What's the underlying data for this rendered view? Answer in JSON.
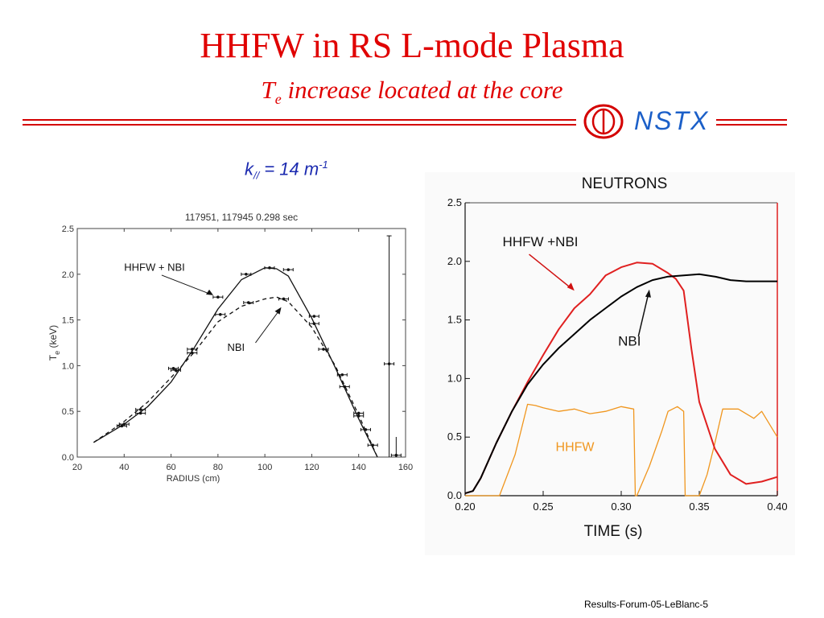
{
  "slide": {
    "title": "HHFW in RS L-mode Plasma",
    "subtitle_main": "T",
    "subtitle_sub": "e",
    "subtitle_rest": " increase located at the core",
    "logo_text": "NSTX",
    "kpar_prefix": "k",
    "kpar_sub": "//",
    "kpar_mid": " = 14 m",
    "kpar_sup": "-1",
    "footer": "Results-Forum-05-LeBlanc-5"
  },
  "colors": {
    "title": "#e00000",
    "rule": "#d40000",
    "logo": "#1b5fc8",
    "kpar": "#1c2bb0",
    "hhfw_nbi": "#e02020",
    "nbi": "#000000",
    "hhfw": "#f0961e",
    "arrow_red": "#d01010"
  },
  "chart_data": [
    {
      "type": "line",
      "title": "117951, 117945  0.298 sec",
      "xlabel": "RADIUS (cm)",
      "ylabel_main": "T",
      "ylabel_sub": "e",
      "ylabel_unit": " (keV)",
      "xlim": [
        20,
        160
      ],
      "ylim": [
        0,
        2.5
      ],
      "xticks": [
        "20",
        "40",
        "60",
        "80",
        "100",
        "120",
        "140",
        "160"
      ],
      "yticks": [
        "0.0",
        "0.5",
        "1.0",
        "1.5",
        "2.0",
        "2.5"
      ],
      "series": [
        {
          "name": "HHFW + NBI",
          "style": "solid",
          "x": [
            27,
            40,
            50,
            60,
            70,
            80,
            90,
            100,
            105,
            110,
            120,
            130,
            140,
            148
          ],
          "y": [
            0.16,
            0.36,
            0.55,
            0.82,
            1.2,
            1.62,
            1.94,
            2.07,
            2.06,
            1.98,
            1.52,
            0.98,
            0.42,
            0.0
          ]
        },
        {
          "name": "NBI",
          "style": "dashed",
          "x": [
            27,
            40,
            50,
            60,
            70,
            80,
            90,
            100,
            105,
            110,
            120,
            130,
            140,
            148
          ],
          "y": [
            0.16,
            0.39,
            0.6,
            0.87,
            1.15,
            1.48,
            1.65,
            1.73,
            1.75,
            1.7,
            1.42,
            1.0,
            0.46,
            0.0
          ]
        }
      ],
      "points": [
        {
          "x": 39,
          "y": 0.34
        },
        {
          "x": 40,
          "y": 0.36
        },
        {
          "x": 47,
          "y": 0.52
        },
        {
          "x": 47,
          "y": 0.48
        },
        {
          "x": 61,
          "y": 0.97
        },
        {
          "x": 62,
          "y": 0.95
        },
        {
          "x": 69,
          "y": 1.18
        },
        {
          "x": 69,
          "y": 1.14
        },
        {
          "x": 80,
          "y": 1.75
        },
        {
          "x": 81,
          "y": 1.56
        },
        {
          "x": 92,
          "y": 2.0
        },
        {
          "x": 93,
          "y": 1.69
        },
        {
          "x": 102,
          "y": 2.07
        },
        {
          "x": 110,
          "y": 2.05
        },
        {
          "x": 108,
          "y": 1.73
        },
        {
          "x": 121,
          "y": 1.54
        },
        {
          "x": 121,
          "y": 1.46
        },
        {
          "x": 125,
          "y": 1.18
        },
        {
          "x": 133,
          "y": 0.9
        },
        {
          "x": 134,
          "y": 0.77
        },
        {
          "x": 140,
          "y": 0.48
        },
        {
          "x": 140,
          "y": 0.45
        },
        {
          "x": 143,
          "y": 0.3
        },
        {
          "x": 146,
          "y": 0.13
        },
        {
          "x": 153,
          "y": 1.02
        },
        {
          "x": 156,
          "y": 0.02
        }
      ],
      "labels": [
        {
          "text": "HHFW + NBI",
          "x": 40,
          "y": 2.04
        },
        {
          "text": "NBI",
          "x": 84,
          "y": 1.16
        }
      ]
    },
    {
      "type": "line",
      "title": "NEUTRONS",
      "xlabel": "TIME (s)",
      "xlim": [
        0.2,
        0.4
      ],
      "ylim": [
        0,
        2.5
      ],
      "xticks": [
        "0.20",
        "0.25",
        "0.30",
        "0.35",
        "0.40"
      ],
      "yticks": [
        "0.0",
        "0.5",
        "1.0",
        "1.5",
        "2.0",
        "2.5"
      ],
      "series": [
        {
          "name": "HHFW +NBI",
          "x": [
            0.2,
            0.205,
            0.21,
            0.22,
            0.23,
            0.24,
            0.25,
            0.26,
            0.27,
            0.28,
            0.29,
            0.3,
            0.31,
            0.32,
            0.33,
            0.335,
            0.34,
            0.345,
            0.35,
            0.36,
            0.37,
            0.38,
            0.39,
            0.4
          ],
          "y": [
            0.02,
            0.04,
            0.15,
            0.45,
            0.72,
            0.97,
            1.2,
            1.42,
            1.6,
            1.72,
            1.88,
            1.95,
            1.99,
            1.98,
            1.9,
            1.85,
            1.75,
            1.25,
            0.8,
            0.4,
            0.18,
            0.1,
            0.12,
            0.16
          ]
        },
        {
          "name": "NBI",
          "x": [
            0.2,
            0.205,
            0.21,
            0.22,
            0.23,
            0.24,
            0.25,
            0.26,
            0.27,
            0.28,
            0.29,
            0.3,
            0.31,
            0.32,
            0.33,
            0.34,
            0.35,
            0.36,
            0.37,
            0.38,
            0.39,
            0.4
          ],
          "y": [
            0.02,
            0.04,
            0.15,
            0.45,
            0.72,
            0.95,
            1.12,
            1.26,
            1.38,
            1.5,
            1.6,
            1.7,
            1.78,
            1.84,
            1.87,
            1.88,
            1.89,
            1.87,
            1.84,
            1.83,
            1.83,
            1.83
          ]
        },
        {
          "name": "HHFW",
          "x": [
            0.2,
            0.222,
            0.232,
            0.24,
            0.245,
            0.25,
            0.26,
            0.27,
            0.28,
            0.29,
            0.3,
            0.308,
            0.309,
            0.31,
            0.318,
            0.326,
            0.33,
            0.336,
            0.34,
            0.341,
            0.342,
            0.35,
            0.355,
            0.36,
            0.365,
            0.375,
            0.385,
            0.39,
            0.4
          ],
          "y": [
            0,
            0,
            0.35,
            0.78,
            0.77,
            0.75,
            0.72,
            0.74,
            0.7,
            0.72,
            0.76,
            0.74,
            0.0,
            0.0,
            0.25,
            0.55,
            0.72,
            0.76,
            0.72,
            0.0,
            0.0,
            0.0,
            0.18,
            0.45,
            0.74,
            0.74,
            0.66,
            0.72,
            0.5
          ]
        }
      ],
      "labels": [
        {
          "text": "HHFW +NBI",
          "x": 0.224,
          "y": 2.13
        },
        {
          "text": "NBI",
          "x": 0.298,
          "y": 1.28
        },
        {
          "text": "HHFW",
          "x": 0.258,
          "y": 0.38
        }
      ]
    }
  ]
}
